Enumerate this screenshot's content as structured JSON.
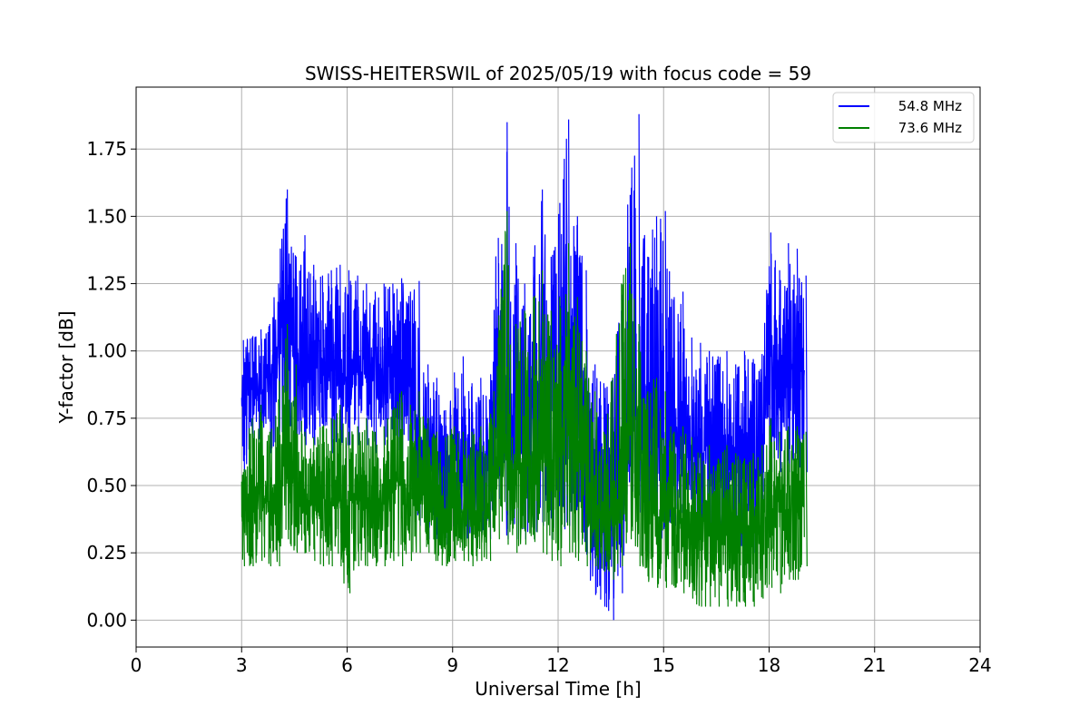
{
  "chart_data": {
    "type": "line",
    "title": "SWISS-HEITERSWIL of 2025/05/19 with focus code = 59",
    "xlabel": "Universal Time [h]",
    "ylabel": "Y-factor [dB]",
    "xlim": [
      0,
      24
    ],
    "ylim": [
      -0.1,
      1.98
    ],
    "xticks": [
      0,
      3,
      6,
      9,
      12,
      15,
      18,
      21,
      24
    ],
    "xtick_labels": [
      "0",
      "3",
      "6",
      "9",
      "12",
      "15",
      "18",
      "21",
      "24"
    ],
    "yticks": [
      0.0,
      0.25,
      0.5,
      0.75,
      1.0,
      1.25,
      1.5,
      1.75
    ],
    "ytick_labels": [
      "0.00",
      "0.25",
      "0.50",
      "0.75",
      "1.00",
      "1.25",
      "1.50",
      "1.75"
    ],
    "grid": true,
    "legend_position": "top-right",
    "series": [
      {
        "name": "54.8 MHz",
        "color": "#0000ff",
        "envelope_step_h": 0.25,
        "x": [
          3.0,
          3.25,
          3.5,
          3.75,
          4.0,
          4.25,
          4.5,
          4.75,
          5.0,
          5.25,
          5.5,
          5.75,
          6.0,
          6.25,
          6.5,
          6.75,
          7.0,
          7.25,
          7.5,
          7.75,
          8.0,
          8.25,
          8.5,
          8.75,
          9.0,
          9.25,
          9.5,
          9.75,
          10.0,
          10.25,
          10.5,
          10.75,
          11.0,
          11.25,
          11.5,
          11.75,
          12.0,
          12.25,
          12.5,
          12.75,
          13.0,
          13.25,
          13.5,
          13.75,
          14.0,
          14.25,
          14.5,
          14.75,
          15.0,
          15.25,
          15.5,
          15.75,
          16.0,
          16.25,
          16.5,
          16.75,
          17.0,
          17.25,
          17.5,
          17.75,
          18.0,
          18.25,
          18.5,
          18.75,
          19.0
        ],
        "mean": [
          0.85,
          0.88,
          0.9,
          0.9,
          0.95,
          1.05,
          0.98,
          0.95,
          0.92,
          0.95,
          0.9,
          0.92,
          0.9,
          0.92,
          0.9,
          0.9,
          0.9,
          0.92,
          0.88,
          0.9,
          0.7,
          0.6,
          0.58,
          0.55,
          0.6,
          0.6,
          0.55,
          0.6,
          0.6,
          0.82,
          0.85,
          0.75,
          0.78,
          0.8,
          0.85,
          0.8,
          0.75,
          0.9,
          0.85,
          0.7,
          0.55,
          0.5,
          0.5,
          0.55,
          0.85,
          0.9,
          0.7,
          0.65,
          0.6,
          0.65,
          0.7,
          0.65,
          0.62,
          0.65,
          0.6,
          0.62,
          0.6,
          0.6,
          0.55,
          0.55,
          0.95,
          0.9,
          0.92,
          0.95,
          0.9
        ],
        "low": [
          0.55,
          0.6,
          0.65,
          0.62,
          0.65,
          0.7,
          0.65,
          0.65,
          0.65,
          0.68,
          0.62,
          0.65,
          0.65,
          0.65,
          0.65,
          0.62,
          0.65,
          0.65,
          0.6,
          0.62,
          0.35,
          0.3,
          0.3,
          0.28,
          0.32,
          0.3,
          0.3,
          0.32,
          0.3,
          0.45,
          0.3,
          0.3,
          0.3,
          0.3,
          0.35,
          0.3,
          0.3,
          0.35,
          0.3,
          0.25,
          0.1,
          0.05,
          0.0,
          0.1,
          0.35,
          0.4,
          0.25,
          0.25,
          0.3,
          0.35,
          0.4,
          0.35,
          0.3,
          0.35,
          0.3,
          0.3,
          0.25,
          0.25,
          0.25,
          0.3,
          0.55,
          0.55,
          0.55,
          0.58,
          0.55
        ],
        "high": [
          1.04,
          1.05,
          1.08,
          1.1,
          1.25,
          1.6,
          1.35,
          1.43,
          1.32,
          1.28,
          1.3,
          1.32,
          1.3,
          1.28,
          1.25,
          1.22,
          1.25,
          1.25,
          1.27,
          1.22,
          1.26,
          0.95,
          0.9,
          0.78,
          0.92,
          0.98,
          0.88,
          0.9,
          0.82,
          1.42,
          1.85,
          1.4,
          1.25,
          1.35,
          1.6,
          1.35,
          1.55,
          1.86,
          1.5,
          1.3,
          0.95,
          0.88,
          0.9,
          1.15,
          1.58,
          1.88,
          1.35,
          1.5,
          1.52,
          1.2,
          1.22,
          1.05,
          1.03,
          1.0,
          0.98,
          1.0,
          0.95,
          1.0,
          0.97,
          0.95,
          1.44,
          1.3,
          1.4,
          1.38,
          1.28
        ]
      },
      {
        "name": "73.6 MHz",
        "color": "#008000",
        "envelope_step_h": 0.25,
        "x": [
          3.0,
          3.25,
          3.5,
          3.75,
          4.0,
          4.25,
          4.5,
          4.75,
          5.0,
          5.25,
          5.5,
          5.75,
          6.0,
          6.25,
          6.5,
          6.75,
          7.0,
          7.25,
          7.5,
          7.75,
          8.0,
          8.25,
          8.5,
          8.75,
          9.0,
          9.25,
          9.5,
          9.75,
          10.0,
          10.25,
          10.5,
          10.75,
          11.0,
          11.25,
          11.5,
          11.75,
          12.0,
          12.25,
          12.5,
          12.75,
          13.0,
          13.25,
          13.5,
          13.75,
          14.0,
          14.25,
          14.5,
          14.75,
          15.0,
          15.25,
          15.5,
          15.75,
          16.0,
          16.25,
          16.5,
          16.75,
          17.0,
          17.25,
          17.5,
          17.75,
          18.0,
          18.25,
          18.5,
          18.75,
          19.0
        ],
        "mean": [
          0.42,
          0.42,
          0.45,
          0.43,
          0.45,
          0.65,
          0.55,
          0.45,
          0.45,
          0.47,
          0.45,
          0.46,
          0.42,
          0.45,
          0.43,
          0.45,
          0.45,
          0.48,
          0.5,
          0.5,
          0.5,
          0.45,
          0.42,
          0.4,
          0.42,
          0.42,
          0.4,
          0.42,
          0.42,
          0.6,
          0.65,
          0.55,
          0.6,
          0.62,
          0.65,
          0.6,
          0.65,
          0.7,
          0.62,
          0.55,
          0.45,
          0.4,
          0.4,
          0.45,
          0.62,
          0.6,
          0.45,
          0.42,
          0.4,
          0.42,
          0.4,
          0.38,
          0.35,
          0.38,
          0.35,
          0.35,
          0.33,
          0.35,
          0.35,
          0.37,
          0.45,
          0.4,
          0.42,
          0.45,
          0.42
        ],
        "low": [
          0.2,
          0.2,
          0.22,
          0.2,
          0.2,
          0.3,
          0.25,
          0.25,
          0.22,
          0.2,
          0.2,
          0.2,
          0.1,
          0.2,
          0.2,
          0.2,
          0.2,
          0.22,
          0.2,
          0.22,
          0.25,
          0.25,
          0.22,
          0.2,
          0.22,
          0.22,
          0.2,
          0.22,
          0.22,
          0.3,
          0.28,
          0.25,
          0.28,
          0.3,
          0.25,
          0.22,
          0.2,
          0.25,
          0.22,
          0.2,
          0.2,
          0.18,
          0.15,
          0.2,
          0.3,
          0.2,
          0.15,
          0.12,
          0.12,
          0.12,
          0.1,
          0.08,
          0.05,
          0.05,
          0.05,
          0.05,
          0.05,
          0.05,
          0.05,
          0.08,
          0.12,
          0.1,
          0.15,
          0.15,
          0.2
        ],
        "high": [
          0.55,
          0.75,
          0.8,
          0.7,
          0.82,
          1.1,
          0.95,
          0.7,
          0.68,
          0.72,
          0.75,
          0.8,
          0.7,
          0.72,
          0.75,
          0.7,
          0.72,
          0.78,
          0.85,
          0.8,
          0.85,
          0.75,
          0.7,
          0.68,
          0.72,
          0.7,
          0.7,
          0.72,
          0.7,
          1.05,
          1.52,
          1.1,
          1.15,
          1.2,
          1.3,
          1.15,
          1.2,
          1.4,
          1.2,
          1.0,
          0.85,
          0.7,
          0.9,
          1.25,
          1.4,
          1.1,
          0.85,
          0.9,
          0.85,
          0.7,
          0.72,
          0.68,
          0.62,
          0.65,
          0.6,
          0.65,
          0.62,
          0.6,
          0.62,
          0.65,
          0.75,
          0.7,
          0.72,
          0.72,
          0.7
        ]
      }
    ]
  }
}
